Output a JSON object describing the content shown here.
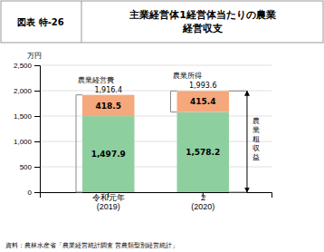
{
  "chart_data": {
    "type": "bar",
    "stacked": true,
    "title_box": "図表 特-26",
    "title": "主業経営体1経営体当たりの農業\n経営収支",
    "ylabel": "万円",
    "categories": [
      "令和元年\n(2019)",
      "２\n(2020)"
    ],
    "series": [
      {
        "color": "#8ecfa0",
        "values": [
          1497.9,
          1578.2
        ],
        "value_labels": [
          "1,497.9",
          "1,578.2"
        ]
      },
      {
        "color": "#f5a87c",
        "values": [
          418.5,
          415.4
        ],
        "value_labels": [
          "418.5",
          "415.4"
        ]
      }
    ],
    "totals": [
      1916.4,
      1993.6
    ],
    "total_labels": [
      "1,916.4",
      "1,993.6"
    ],
    "data_labels": true,
    "ylim": [
      0,
      2500
    ],
    "yticks": [
      0,
      500,
      {
        "value": 1000,
        "label": "1,000"
      },
      {
        "value": 1500,
        "label": "1,500"
      },
      {
        "value": 2000,
        "label": "2,000"
      },
      {
        "value": 2500,
        "label": "2,500"
      }
    ],
    "grid": true,
    "annotations": [
      "農業経営費",
      "農業所得",
      "農\n業\n粗\n収\n益"
    ],
    "source": "資料：農林水産省「農業経営統計調査 営農類型別経営統計」"
  }
}
